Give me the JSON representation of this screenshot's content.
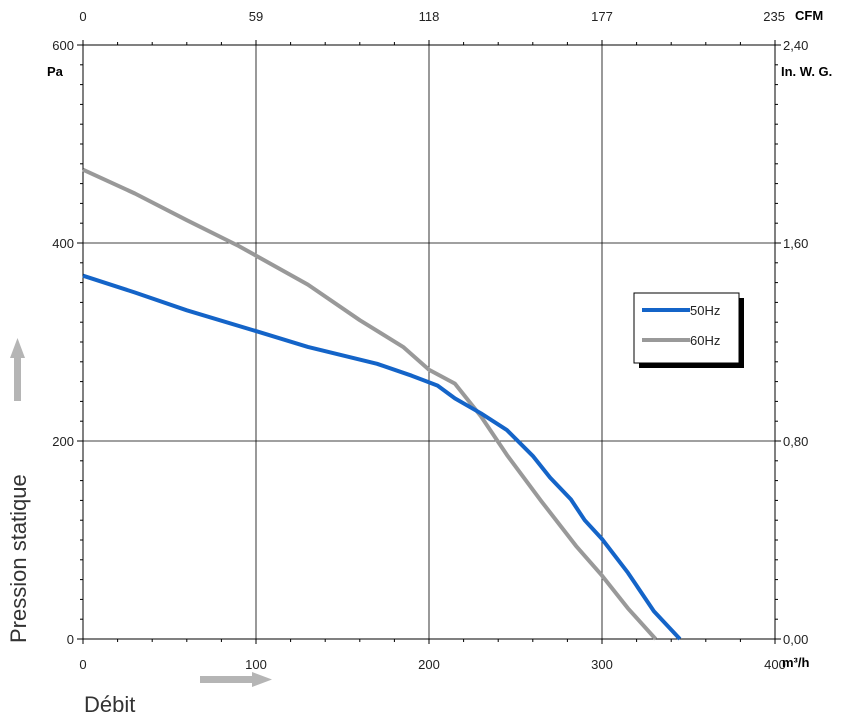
{
  "chart_data": {
    "type": "line",
    "xlabel": "Débit",
    "ylabel": "Pression statique",
    "x_unit": "m³/h",
    "y_unit": "Pa",
    "x2_unit": "CFM",
    "y2_unit": "In. W. G.",
    "xlim": [
      0,
      400
    ],
    "ylim": [
      0,
      600
    ],
    "x_ticks": [
      "0",
      "100",
      "200",
      "300",
      "400"
    ],
    "y_ticks": [
      "0",
      "200",
      "400",
      "600"
    ],
    "x2_ticks": [
      "0",
      "59",
      "118",
      "177",
      "235"
    ],
    "y2_ticks": [
      "0,00",
      "0,80",
      "1,60",
      "2,40"
    ],
    "grid": true,
    "legend_position": "right",
    "series": [
      {
        "name": "50Hz",
        "color": "#1464c8",
        "x": [
          0,
          30,
          60,
          100,
          130,
          170,
          190,
          205,
          215,
          230,
          245,
          260,
          270,
          282,
          290,
          300,
          315,
          330,
          345
        ],
        "y": [
          367,
          350,
          332,
          311,
          295,
          278,
          266,
          256,
          243,
          228,
          211,
          185,
          163,
          141,
          120,
          101,
          67,
          28,
          0
        ]
      },
      {
        "name": "60Hz",
        "color": "#999999",
        "x": [
          0,
          30,
          60,
          90,
          130,
          160,
          185,
          200,
          215,
          230,
          245,
          265,
          285,
          300,
          315,
          331
        ],
        "y": [
          474,
          450,
          423,
          397,
          358,
          322,
          295,
          272,
          258,
          225,
          186,
          139,
          94,
          64,
          31,
          0
        ]
      }
    ]
  }
}
